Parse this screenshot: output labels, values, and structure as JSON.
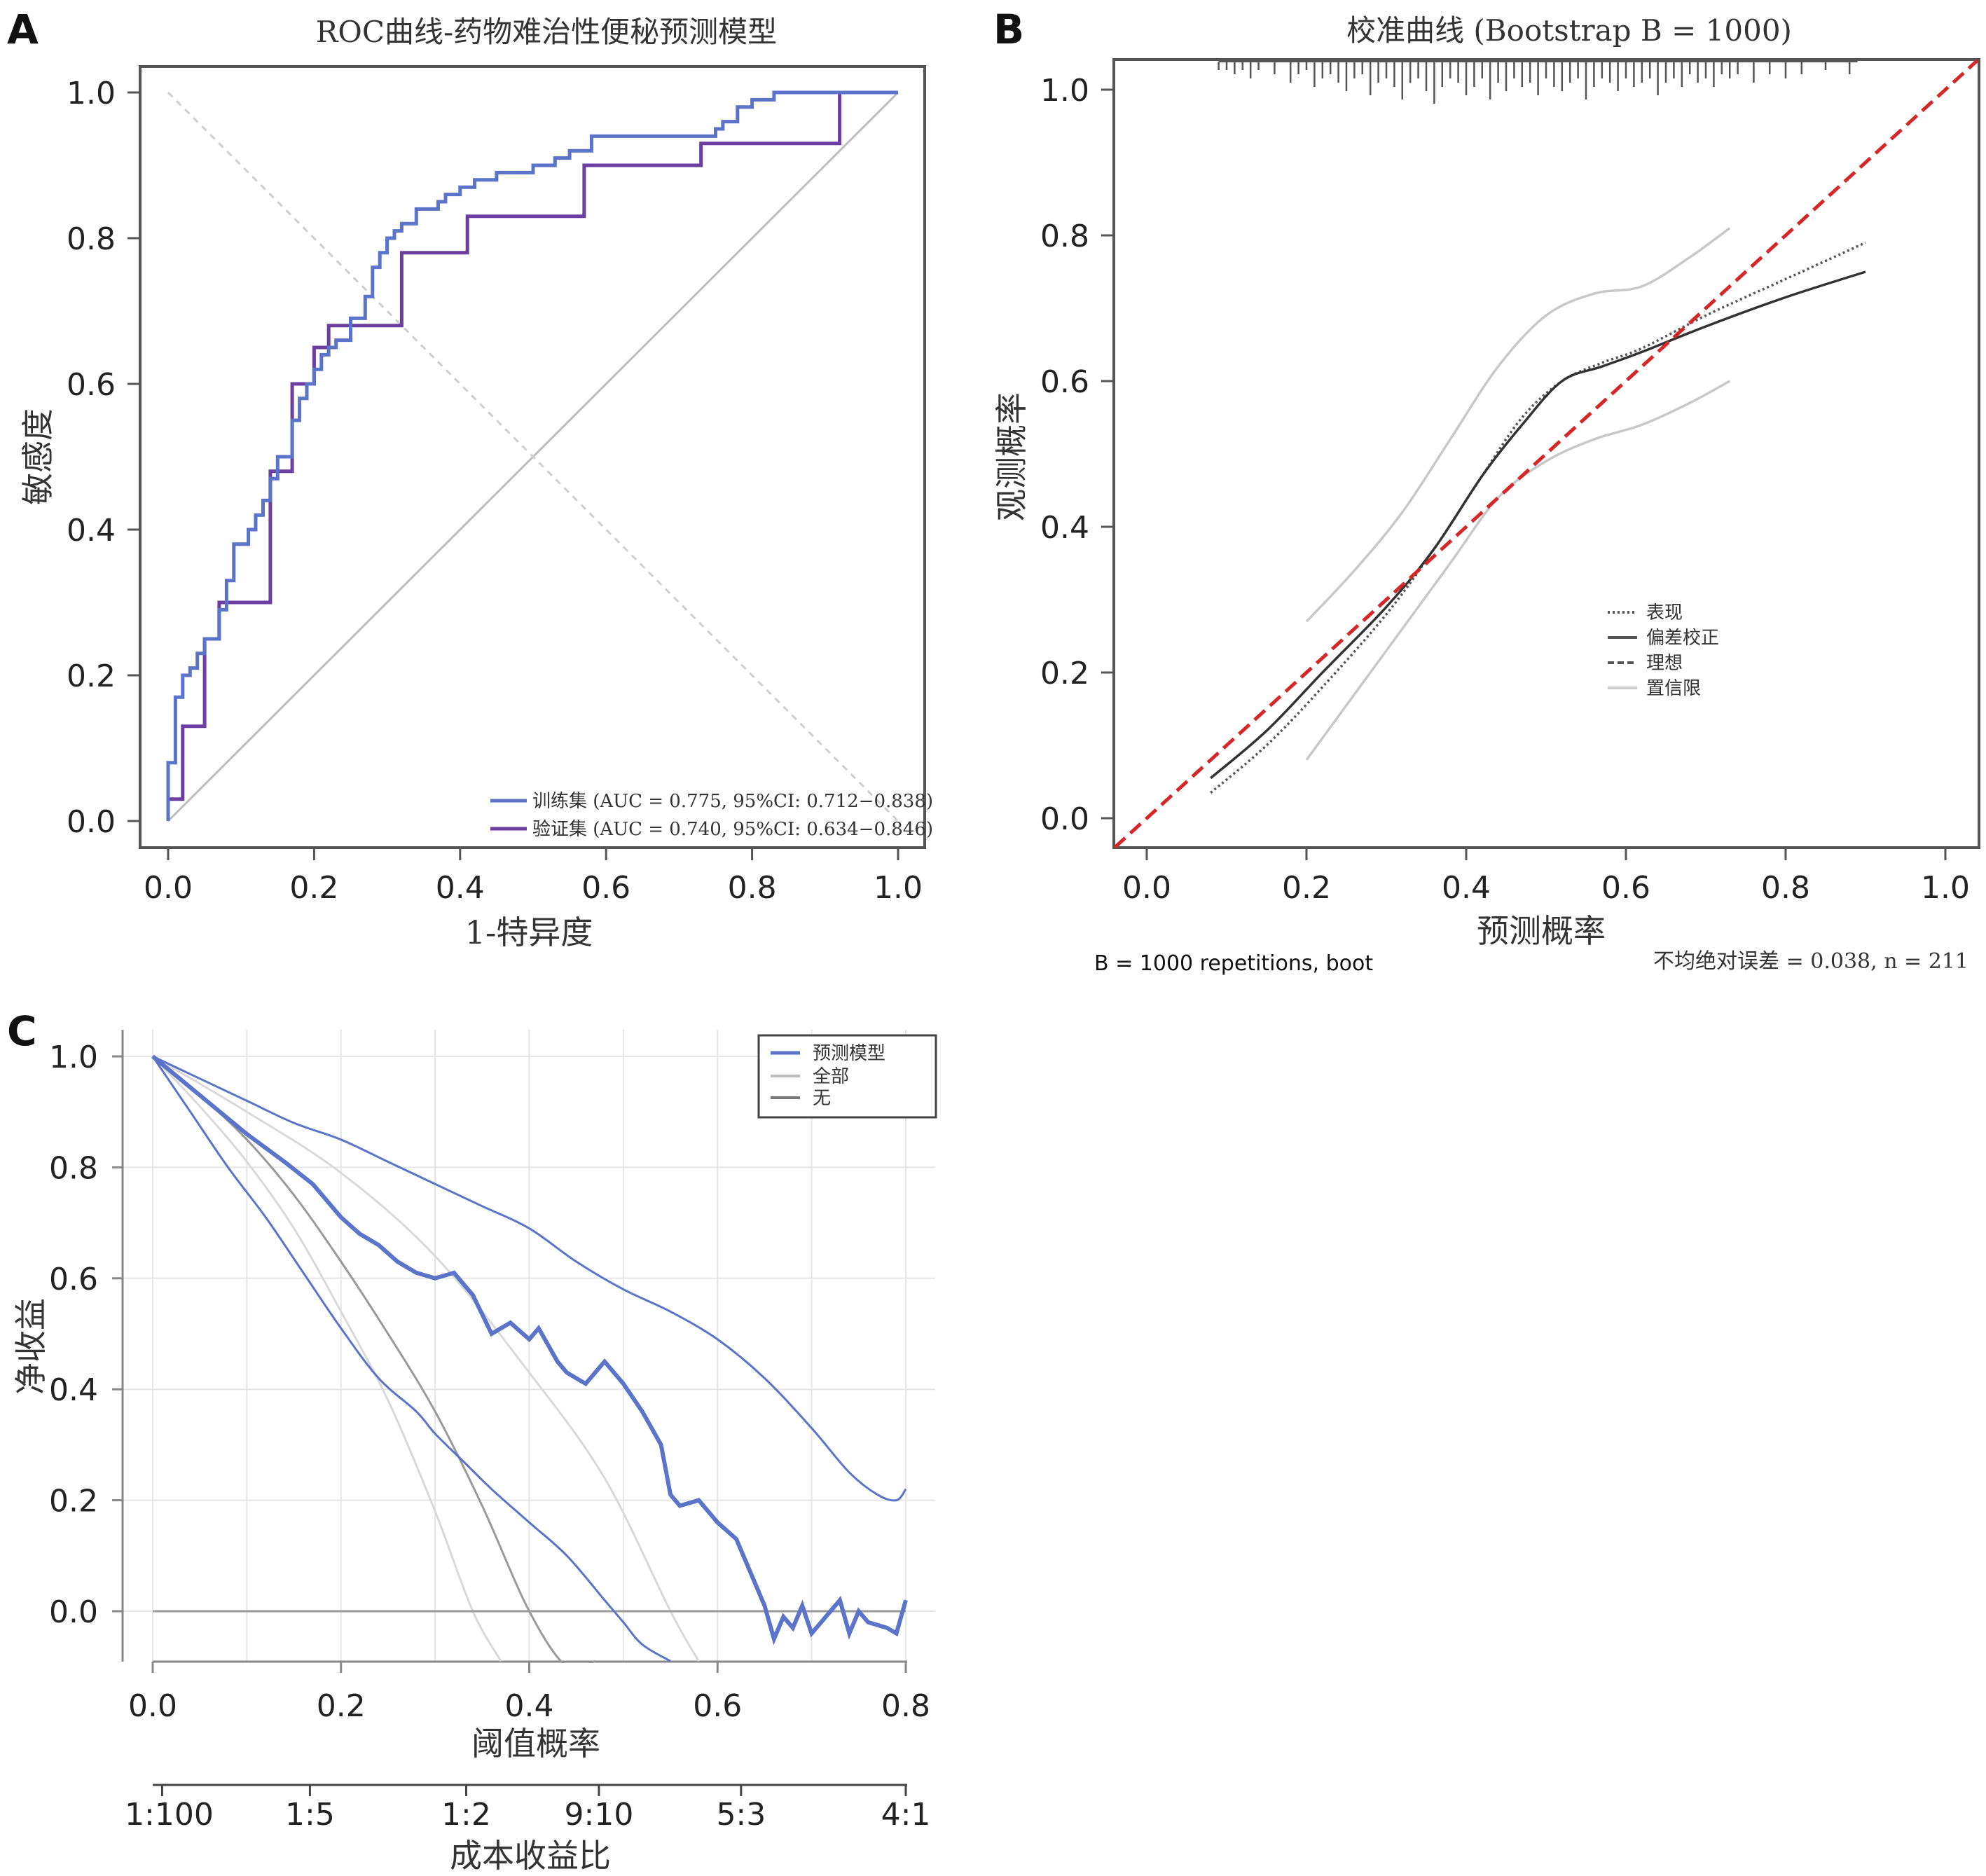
{
  "colors": {
    "train": "#5b73c8",
    "valid": "#6b3fa0",
    "ideal_red": "#d62728",
    "ci_gray": "#c8c8c8",
    "dark": "#333333",
    "grid": "#e6e6e6",
    "dca_blue": "#5b73c8"
  },
  "chart_data": [
    {
      "panel": "A",
      "type": "line",
      "title": "ROC曲线-药物难治性便秘预测模型",
      "xlabel": "1-特异度",
      "ylabel": "敏感度",
      "xlim": [
        0,
        1
      ],
      "ylim": [
        0,
        1
      ],
      "xticks": [
        "0.0",
        "0.2",
        "0.4",
        "0.6",
        "0.8",
        "1.0"
      ],
      "yticks": [
        "0.0",
        "0.2",
        "0.4",
        "0.6",
        "0.8",
        "1.0"
      ],
      "series": [
        {
          "name": "训练集",
          "legend": "训练集 (AUC = 0.775, 95%CI: 0.712−0.838)",
          "x": [
            0,
            0,
            0.01,
            0.01,
            0.02,
            0.02,
            0.03,
            0.03,
            0.04,
            0.04,
            0.05,
            0.05,
            0.07,
            0.07,
            0.08,
            0.08,
            0.09,
            0.09,
            0.11,
            0.11,
            0.12,
            0.12,
            0.13,
            0.13,
            0.14,
            0.14,
            0.15,
            0.15,
            0.17,
            0.17,
            0.18,
            0.18,
            0.19,
            0.19,
            0.2,
            0.2,
            0.21,
            0.21,
            0.22,
            0.22,
            0.23,
            0.23,
            0.25,
            0.25,
            0.27,
            0.27,
            0.28,
            0.28,
            0.29,
            0.29,
            0.3,
            0.3,
            0.31,
            0.31,
            0.32,
            0.32,
            0.34,
            0.34,
            0.37,
            0.37,
            0.38,
            0.38,
            0.4,
            0.4,
            0.42,
            0.42,
            0.45,
            0.45,
            0.5,
            0.5,
            0.53,
            0.53,
            0.55,
            0.55,
            0.58,
            0.58,
            0.6,
            0.6,
            0.75,
            0.75,
            0.76,
            0.76,
            0.78,
            0.78,
            0.8,
            0.8,
            0.83,
            0.83,
            0.86,
            0.86,
            1.0
          ],
          "y": [
            0,
            0.08,
            0.08,
            0.17,
            0.17,
            0.2,
            0.2,
            0.21,
            0.21,
            0.23,
            0.23,
            0.25,
            0.25,
            0.29,
            0.29,
            0.33,
            0.33,
            0.38,
            0.38,
            0.4,
            0.4,
            0.42,
            0.42,
            0.44,
            0.44,
            0.47,
            0.47,
            0.5,
            0.5,
            0.55,
            0.55,
            0.58,
            0.58,
            0.6,
            0.6,
            0.62,
            0.62,
            0.64,
            0.64,
            0.65,
            0.65,
            0.66,
            0.66,
            0.69,
            0.69,
            0.72,
            0.72,
            0.76,
            0.76,
            0.78,
            0.78,
            0.8,
            0.8,
            0.81,
            0.81,
            0.82,
            0.82,
            0.84,
            0.84,
            0.85,
            0.85,
            0.86,
            0.86,
            0.87,
            0.87,
            0.88,
            0.88,
            0.89,
            0.89,
            0.9,
            0.9,
            0.91,
            0.91,
            0.92,
            0.92,
            0.94,
            0.94,
            0.94,
            0.94,
            0.95,
            0.95,
            0.96,
            0.96,
            0.98,
            0.98,
            0.99,
            0.99,
            1.0,
            1.0,
            1.0,
            1.0
          ]
        },
        {
          "name": "验证集",
          "legend": "验证集 (AUC = 0.740, 95%CI: 0.634−0.846)",
          "x": [
            0,
            0,
            0.02,
            0.02,
            0.03,
            0.03,
            0.05,
            0.05,
            0.07,
            0.07,
            0.1,
            0.1,
            0.14,
            0.14,
            0.17,
            0.17,
            0.18,
            0.18,
            0.2,
            0.2,
            0.22,
            0.22,
            0.32,
            0.32,
            0.41,
            0.41,
            0.57,
            0.57,
            0.73,
            0.73,
            0.92,
            0.92,
            1.0
          ],
          "y": [
            0,
            0.03,
            0.03,
            0.13,
            0.13,
            0.13,
            0.13,
            0.25,
            0.25,
            0.3,
            0.3,
            0.3,
            0.3,
            0.48,
            0.48,
            0.6,
            0.6,
            0.6,
            0.6,
            0.65,
            0.65,
            0.68,
            0.68,
            0.78,
            0.78,
            0.83,
            0.83,
            0.9,
            0.9,
            0.93,
            0.93,
            1.0,
            1.0
          ]
        }
      ]
    },
    {
      "panel": "B",
      "type": "line",
      "title": "校准曲线 (Bootstrap B = 1000)",
      "xlabel": "预测概率",
      "ylabel": "观测概率",
      "xlim": [
        -0.04,
        1.04
      ],
      "ylim": [
        -0.04,
        1.04
      ],
      "xticks": [
        "0.0",
        "0.2",
        "0.4",
        "0.6",
        "0.8",
        "1.0"
      ],
      "yticks": [
        "0.0",
        "0.2",
        "0.4",
        "0.6",
        "0.8",
        "1.0"
      ],
      "note_left": "B = 1000 repetitions, boot",
      "note_right": "不均绝对误差 = 0.038, n = 211",
      "legend": [
        "表现",
        "偏差校正",
        "理想",
        "置信限"
      ],
      "series": [
        {
          "name": "表现",
          "style": "dotted",
          "x": [
            0.08,
            0.15,
            0.22,
            0.3,
            0.36,
            0.42,
            0.47,
            0.52,
            0.57,
            0.62,
            0.7,
            0.8,
            0.9
          ],
          "y": [
            0.035,
            0.1,
            0.18,
            0.28,
            0.37,
            0.47,
            0.55,
            0.6,
            0.625,
            0.645,
            0.69,
            0.74,
            0.79
          ]
        },
        {
          "name": "偏差校正",
          "style": "solid",
          "x": [
            0.08,
            0.15,
            0.22,
            0.3,
            0.36,
            0.42,
            0.47,
            0.52,
            0.57,
            0.62,
            0.7,
            0.8,
            0.9
          ],
          "y": [
            0.055,
            0.12,
            0.2,
            0.29,
            0.37,
            0.47,
            0.54,
            0.6,
            0.62,
            0.64,
            0.675,
            0.715,
            0.75
          ]
        },
        {
          "name": "理想",
          "style": "dashed",
          "x": [
            -0.04,
            1.04
          ],
          "y": [
            -0.04,
            1.04
          ]
        },
        {
          "name": "置信限上",
          "style": "ci",
          "x": [
            0.2,
            0.26,
            0.32,
            0.38,
            0.44,
            0.5,
            0.56,
            0.62,
            0.68,
            0.73
          ],
          "y": [
            0.27,
            0.34,
            0.42,
            0.52,
            0.62,
            0.69,
            0.72,
            0.73,
            0.77,
            0.81
          ]
        },
        {
          "name": "置信限下",
          "style": "ci",
          "x": [
            0.2,
            0.26,
            0.32,
            0.38,
            0.44,
            0.5,
            0.56,
            0.62,
            0.68,
            0.73
          ],
          "y": [
            0.08,
            0.17,
            0.26,
            0.35,
            0.44,
            0.49,
            0.52,
            0.54,
            0.57,
            0.6
          ]
        }
      ],
      "rug_x": [
        0.09,
        0.1,
        0.11,
        0.12,
        0.13,
        0.14,
        0.16,
        0.18,
        0.19,
        0.2,
        0.21,
        0.22,
        0.23,
        0.24,
        0.25,
        0.26,
        0.27,
        0.28,
        0.29,
        0.3,
        0.31,
        0.32,
        0.33,
        0.34,
        0.35,
        0.36,
        0.37,
        0.38,
        0.39,
        0.4,
        0.41,
        0.42,
        0.43,
        0.44,
        0.45,
        0.46,
        0.47,
        0.48,
        0.49,
        0.5,
        0.51,
        0.52,
        0.53,
        0.54,
        0.55,
        0.56,
        0.57,
        0.58,
        0.59,
        0.6,
        0.61,
        0.62,
        0.63,
        0.64,
        0.65,
        0.66,
        0.67,
        0.68,
        0.69,
        0.7,
        0.71,
        0.72,
        0.73,
        0.74,
        0.76,
        0.78,
        0.8,
        0.82,
        0.85,
        0.88
      ],
      "rug_h": [
        1,
        1,
        2,
        1,
        3,
        1,
        2,
        4,
        2,
        1,
        5,
        3,
        2,
        4,
        6,
        3,
        2,
        7,
        4,
        3,
        5,
        8,
        4,
        3,
        6,
        9,
        5,
        3,
        4,
        7,
        5,
        3,
        8,
        4,
        6,
        3,
        5,
        4,
        7,
        3,
        5,
        6,
        4,
        3,
        8,
        5,
        3,
        4,
        6,
        3,
        5,
        4,
        3,
        7,
        4,
        3,
        5,
        2,
        4,
        3,
        5,
        2,
        3,
        2,
        4,
        2,
        3,
        2,
        1,
        2
      ]
    },
    {
      "panel": "C",
      "type": "line",
      "xlabel": "阈值概率",
      "ylabel": "净收益",
      "xlim": [
        0,
        0.8
      ],
      "ylim": [
        -0.09,
        1.0
      ],
      "xticks": [
        "0.0",
        "0.2",
        "0.4",
        "0.6",
        "0.8"
      ],
      "yticks": [
        "0.0",
        "0.2",
        "0.4",
        "0.6",
        "0.8",
        "1.0"
      ],
      "second_axis_label": "成本收益比",
      "second_axis_ticks": [
        "1:100",
        "1:5",
        "1:2",
        "9:10",
        "5:3",
        "4:1"
      ],
      "second_axis_positions": [
        0.01,
        0.167,
        0.333,
        0.474,
        0.625,
        0.8
      ],
      "legend": [
        "预测模型",
        "全部",
        "无"
      ],
      "series": [
        {
          "name": "预测模型",
          "style": "bold",
          "x": [
            0.0,
            0.05,
            0.1,
            0.14,
            0.17,
            0.2,
            0.22,
            0.24,
            0.26,
            0.28,
            0.3,
            0.32,
            0.34,
            0.36,
            0.38,
            0.4,
            0.41,
            0.43,
            0.44,
            0.45,
            0.46,
            0.48,
            0.5,
            0.52,
            0.53,
            0.54,
            0.55,
            0.56,
            0.58,
            0.6,
            0.62,
            0.64,
            0.65,
            0.66,
            0.67,
            0.68,
            0.69,
            0.7,
            0.71,
            0.72,
            0.73,
            0.74,
            0.75,
            0.76,
            0.78,
            0.79,
            0.8
          ],
          "y": [
            1.0,
            0.93,
            0.86,
            0.81,
            0.77,
            0.71,
            0.68,
            0.66,
            0.63,
            0.61,
            0.6,
            0.61,
            0.57,
            0.5,
            0.52,
            0.49,
            0.51,
            0.45,
            0.43,
            0.42,
            0.41,
            0.45,
            0.41,
            0.36,
            0.33,
            0.3,
            0.21,
            0.19,
            0.2,
            0.16,
            0.13,
            0.05,
            0.01,
            -0.05,
            -0.01,
            -0.03,
            0.01,
            -0.04,
            -0.02,
            0.0,
            0.02,
            -0.04,
            0.0,
            -0.02,
            -0.03,
            -0.04,
            0.02
          ]
        },
        {
          "name": "预测模型上限",
          "style": "thin",
          "x": [
            0.0,
            0.05,
            0.1,
            0.15,
            0.2,
            0.25,
            0.3,
            0.35,
            0.4,
            0.45,
            0.5,
            0.55,
            0.6,
            0.65,
            0.7,
            0.74,
            0.77,
            0.79,
            0.8
          ],
          "y": [
            1.0,
            0.96,
            0.92,
            0.88,
            0.85,
            0.81,
            0.77,
            0.73,
            0.69,
            0.63,
            0.58,
            0.54,
            0.49,
            0.42,
            0.33,
            0.25,
            0.21,
            0.2,
            0.22
          ]
        },
        {
          "name": "预测模型下限",
          "style": "thin",
          "x": [
            0.0,
            0.04,
            0.08,
            0.12,
            0.16,
            0.2,
            0.24,
            0.28,
            0.3,
            0.33,
            0.36,
            0.4,
            0.44,
            0.48,
            0.5,
            0.52,
            0.55
          ],
          "y": [
            1.0,
            0.9,
            0.8,
            0.71,
            0.61,
            0.51,
            0.42,
            0.36,
            0.32,
            0.27,
            0.22,
            0.16,
            0.1,
            0.02,
            -0.02,
            -0.06,
            -0.09
          ]
        },
        {
          "name": "全部",
          "style": "gray",
          "x": [
            0.0,
            0.05,
            0.1,
            0.15,
            0.2,
            0.25,
            0.3,
            0.35,
            0.4,
            0.44,
            0.47
          ],
          "y": [
            1.0,
            0.93,
            0.85,
            0.75,
            0.63,
            0.5,
            0.36,
            0.19,
            0.0,
            -0.1,
            -0.09
          ]
        },
        {
          "name": "全部上限",
          "style": "light",
          "x": [
            0.0,
            0.1,
            0.2,
            0.3,
            0.4,
            0.48,
            0.55,
            0.58
          ],
          "y": [
            1.0,
            0.9,
            0.79,
            0.64,
            0.43,
            0.24,
            0.0,
            -0.09
          ]
        },
        {
          "name": "全部下限",
          "style": "light",
          "x": [
            0.0,
            0.05,
            0.1,
            0.15,
            0.2,
            0.25,
            0.3,
            0.34,
            0.37
          ],
          "y": [
            1.0,
            0.91,
            0.81,
            0.69,
            0.54,
            0.38,
            0.18,
            0.0,
            -0.09
          ]
        },
        {
          "name": "无",
          "style": "gray",
          "x": [
            0.0,
            0.8
          ],
          "y": [
            0.0,
            0.0
          ]
        }
      ]
    }
  ]
}
